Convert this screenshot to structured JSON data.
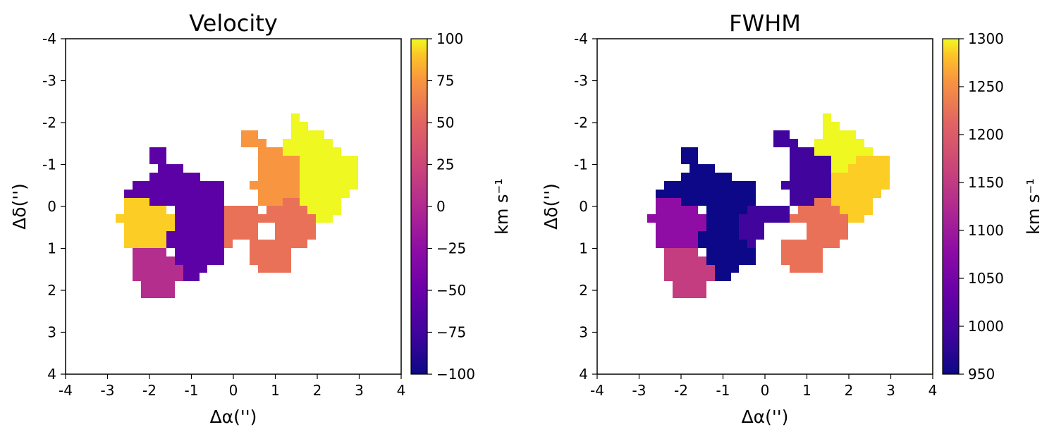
{
  "figure": {
    "panels": [
      {
        "title": "Velocity",
        "xlabel": "Δα('')",
        "ylabel": "Δδ('')",
        "xticks": [
          "-4",
          "-3",
          "-2",
          "-1",
          "0",
          "1",
          "2",
          "3",
          "4"
        ],
        "yticks": [
          "-4",
          "-3",
          "-2",
          "-1",
          "0",
          "1",
          "2",
          "3",
          "4"
        ],
        "colorbar": {
          "label": "km s⁻¹",
          "ticks": [
            "100",
            "75",
            "50",
            "25",
            "0",
            "−25",
            "−50",
            "−75",
            "−100"
          ]
        }
      },
      {
        "title": "FWHM",
        "xlabel": "Δα('')",
        "ylabel": "Δδ('')",
        "xticks": [
          "-4",
          "-3",
          "-2",
          "-1",
          "0",
          "1",
          "2",
          "3",
          "4"
        ],
        "yticks": [
          "-4",
          "-3",
          "-2",
          "-1",
          "0",
          "1",
          "2",
          "3",
          "4"
        ],
        "colorbar": {
          "label": "km s⁻¹",
          "ticks": [
            "1300",
            "1250",
            "1200",
            "1150",
            "1100",
            "1050",
            "1000",
            "950"
          ]
        }
      }
    ]
  },
  "chart_data": [
    {
      "type": "heatmap",
      "title": "Velocity",
      "xlabel": "Δα('')",
      "ylabel": "Δδ('')",
      "xlim": [
        -4,
        4
      ],
      "ylim": [
        4,
        -4
      ],
      "colormap": "plasma",
      "clim": [
        -100,
        100
      ],
      "colorbar_label": "km s⁻¹",
      "colorbar_ticks": [
        -100,
        -75,
        -50,
        -25,
        0,
        25,
        50,
        75,
        100
      ],
      "regions": [
        {
          "value": 98,
          "color": "#eff821",
          "desc": "north-west lobe (upper right)"
        },
        {
          "value": 50,
          "color": "#f89540",
          "desc": "central upper strip"
        },
        {
          "value": 35,
          "color": "#e97158",
          "desc": "central lower region"
        },
        {
          "value": -75,
          "color": "#5c01a6",
          "desc": "upper left"
        },
        {
          "value": 70,
          "color": "#fccd25",
          "desc": "far left block"
        },
        {
          "value": -20,
          "color": "#b42e8d",
          "desc": "lower left"
        }
      ]
    },
    {
      "type": "heatmap",
      "title": "FWHM",
      "xlabel": "Δα('')",
      "ylabel": "Δδ('')",
      "xlim": [
        -4,
        4
      ],
      "ylim": [
        4,
        -4
      ],
      "colormap": "plasma",
      "clim": [
        950,
        1300
      ],
      "colorbar_label": "km s⁻¹",
      "colorbar_ticks": [
        950,
        1000,
        1050,
        1100,
        1150,
        1200,
        1250,
        1300
      ],
      "regions": [
        {
          "value": 1295,
          "color": "#eff821",
          "desc": "north-west top"
        },
        {
          "value": 1260,
          "color": "#fccd25",
          "desc": "north-west lower"
        },
        {
          "value": 1185,
          "color": "#e97158",
          "desc": "central lower region"
        },
        {
          "value": 1000,
          "color": "#41049d",
          "desc": "central strip and upper middle"
        },
        {
          "value": 950,
          "color": "#0d0887",
          "desc": "upper left / center"
        },
        {
          "value": 1060,
          "color": "#8f0da4",
          "desc": "far left block"
        },
        {
          "value": 1120,
          "color": "#c33d80",
          "desc": "lower left"
        }
      ]
    }
  ]
}
